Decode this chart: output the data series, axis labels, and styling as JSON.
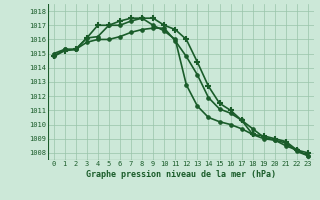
{
  "title": "Graphe pression niveau de la mer (hPa)",
  "background_color": "#cce8d8",
  "grid_color": "#99c4aa",
  "line_color": "#1a5c2a",
  "text_color": "#1a5c2a",
  "xlim": [
    -0.5,
    23.5
  ],
  "ylim": [
    1007.5,
    1018.5
  ],
  "yticks": [
    1008,
    1009,
    1010,
    1011,
    1012,
    1013,
    1014,
    1015,
    1016,
    1017,
    1018
  ],
  "xticks": [
    0,
    1,
    2,
    3,
    4,
    5,
    6,
    7,
    8,
    9,
    10,
    11,
    12,
    13,
    14,
    15,
    16,
    17,
    18,
    19,
    20,
    21,
    22,
    23
  ],
  "series": [
    {
      "x": [
        0,
        1,
        2,
        3,
        4,
        5,
        6,
        7,
        8,
        9,
        10,
        11,
        12,
        13,
        14,
        15,
        16,
        17,
        18,
        19,
        20,
        21,
        22,
        23
      ],
      "y": [
        1014.8,
        1015.2,
        1015.3,
        1016.1,
        1017.0,
        1017.0,
        1017.3,
        1017.5,
        1017.5,
        1017.5,
        1017.0,
        1016.7,
        1016.0,
        1014.4,
        1012.7,
        1011.5,
        1011.0,
        1010.3,
        1009.3,
        1009.2,
        1009.0,
        1008.8,
        1008.2,
        1008.0
      ],
      "marker": "+",
      "linewidth": 1.2,
      "markersize": 4,
      "markeredgewidth": 1.5
    },
    {
      "x": [
        0,
        1,
        2,
        3,
        4,
        5,
        6,
        7,
        8,
        9,
        10,
        11,
        12,
        13,
        14,
        15,
        16,
        17,
        18,
        19,
        20,
        21,
        22,
        23
      ],
      "y": [
        1015.0,
        1015.3,
        1015.3,
        1016.1,
        1016.2,
        1017.0,
        1017.0,
        1017.3,
        1017.5,
        1017.0,
        1016.6,
        1016.0,
        1012.8,
        1011.3,
        1010.5,
        1010.2,
        1010.0,
        1009.7,
        1009.3,
        1009.0,
        1008.9,
        1008.7,
        1008.1,
        1007.8
      ],
      "marker": "o",
      "linewidth": 1.2,
      "markersize": 2.5,
      "markeredgewidth": 0.8
    },
    {
      "x": [
        0,
        1,
        2,
        3,
        4,
        5,
        6,
        7,
        8,
        9,
        10,
        11,
        12,
        13,
        14,
        15,
        16,
        17,
        18,
        19,
        20,
        21,
        22,
        23
      ],
      "y": [
        1014.8,
        1015.3,
        1015.3,
        1015.8,
        1016.0,
        1016.0,
        1016.2,
        1016.5,
        1016.7,
        1016.8,
        1016.8,
        1015.9,
        1014.8,
        1013.5,
        1011.9,
        1011.1,
        1010.8,
        1010.3,
        1009.7,
        1009.1,
        1008.9,
        1008.5,
        1008.2,
        1007.8
      ],
      "marker": "o",
      "linewidth": 1.2,
      "markersize": 2.5,
      "markeredgewidth": 0.8
    }
  ]
}
